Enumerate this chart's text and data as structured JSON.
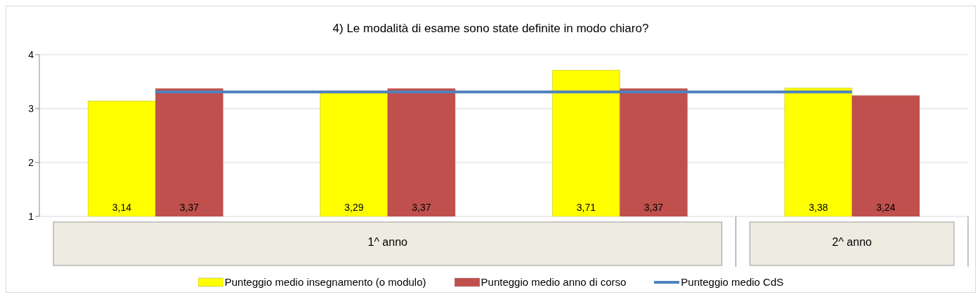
{
  "chart_data": {
    "type": "bar",
    "title": "4) Le modalità di esame sono state definite in modo chiaro?",
    "categories": [
      null,
      null,
      null,
      null
    ],
    "series": [
      {
        "name": "Punteggio medio insegnamento (o modulo)",
        "color": "#ffff00",
        "values": [
          3.14,
          3.29,
          3.71,
          3.38
        ],
        "value_labels": [
          "3,14",
          "3,29",
          "3,71",
          "3,38"
        ]
      },
      {
        "name": "Punteggio medio anno di corso",
        "color": "#c0504d",
        "values": [
          3.37,
          3.37,
          3.37,
          3.24
        ],
        "value_labels": [
          "3,37",
          "3,37",
          "3,37",
          "3,24"
        ]
      },
      {
        "name": "Punteggio medio CdS",
        "type": "line",
        "color": "#4f81bd",
        "values": [
          3.31,
          3.31,
          3.31,
          3.31
        ]
      }
    ],
    "ylim": [
      1,
      4
    ],
    "yticks": [
      1,
      2,
      3,
      4
    ],
    "grid": "y",
    "legend": "bottom",
    "marker": "none",
    "annotations": [
      "1^ anno",
      "2^ anno"
    ]
  }
}
